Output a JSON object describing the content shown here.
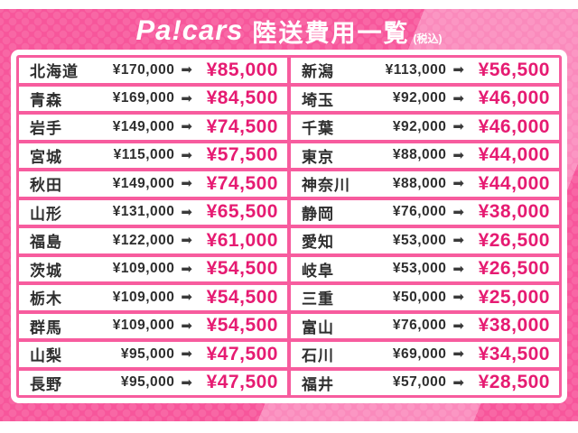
{
  "header": {
    "logo": "Pa!cars",
    "title": "陸送費用一覧",
    "tax_note": "(税込)"
  },
  "icons": {
    "arrow": "➡"
  },
  "colors": {
    "background_pink": "#f7569b",
    "background_light_pink": "#fa8abc",
    "discount_price_pink": "#e61b72",
    "text_dark": "#2e2e2e",
    "panel_white": "#ffffff"
  },
  "table": {
    "rows": [
      {
        "left": {
          "prefecture": "北海道",
          "regular": "¥170,000",
          "discounted": "¥85,000"
        },
        "right": {
          "prefecture": "新潟",
          "regular": "¥113,000",
          "discounted": "¥56,500"
        }
      },
      {
        "left": {
          "prefecture": "青森",
          "regular": "¥169,000",
          "discounted": "¥84,500"
        },
        "right": {
          "prefecture": "埼玉",
          "regular": "¥92,000",
          "discounted": "¥46,000"
        }
      },
      {
        "left": {
          "prefecture": "岩手",
          "regular": "¥149,000",
          "discounted": "¥74,500"
        },
        "right": {
          "prefecture": "千葉",
          "regular": "¥92,000",
          "discounted": "¥46,000"
        }
      },
      {
        "left": {
          "prefecture": "宮城",
          "regular": "¥115,000",
          "discounted": "¥57,500"
        },
        "right": {
          "prefecture": "東京",
          "regular": "¥88,000",
          "discounted": "¥44,000"
        }
      },
      {
        "left": {
          "prefecture": "秋田",
          "regular": "¥149,000",
          "discounted": "¥74,500"
        },
        "right": {
          "prefecture": "神奈川",
          "regular": "¥88,000",
          "discounted": "¥44,000"
        }
      },
      {
        "left": {
          "prefecture": "山形",
          "regular": "¥131,000",
          "discounted": "¥65,500"
        },
        "right": {
          "prefecture": "静岡",
          "regular": "¥76,000",
          "discounted": "¥38,000"
        }
      },
      {
        "left": {
          "prefecture": "福島",
          "regular": "¥122,000",
          "discounted": "¥61,000"
        },
        "right": {
          "prefecture": "愛知",
          "regular": "¥53,000",
          "discounted": "¥26,500"
        }
      },
      {
        "left": {
          "prefecture": "茨城",
          "regular": "¥109,000",
          "discounted": "¥54,500"
        },
        "right": {
          "prefecture": "岐阜",
          "regular": "¥53,000",
          "discounted": "¥26,500"
        }
      },
      {
        "left": {
          "prefecture": "栃木",
          "regular": "¥109,000",
          "discounted": "¥54,500"
        },
        "right": {
          "prefecture": "三重",
          "regular": "¥50,000",
          "discounted": "¥25,000"
        }
      },
      {
        "left": {
          "prefecture": "群馬",
          "regular": "¥109,000",
          "discounted": "¥54,500"
        },
        "right": {
          "prefecture": "富山",
          "regular": "¥76,000",
          "discounted": "¥38,000"
        }
      },
      {
        "left": {
          "prefecture": "山梨",
          "regular": "¥95,000",
          "discounted": "¥47,500"
        },
        "right": {
          "prefecture": "石川",
          "regular": "¥69,000",
          "discounted": "¥34,500"
        }
      },
      {
        "left": {
          "prefecture": "長野",
          "regular": "¥95,000",
          "discounted": "¥47,500"
        },
        "right": {
          "prefecture": "福井",
          "regular": "¥57,000",
          "discounted": "¥28,500"
        }
      }
    ]
  }
}
